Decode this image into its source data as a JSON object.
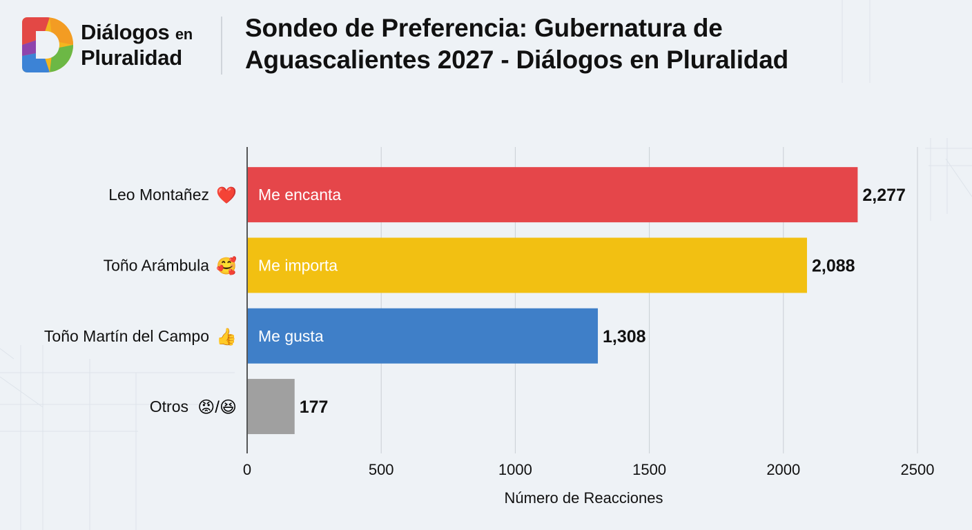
{
  "brand": {
    "name_line1": "Diálogos",
    "name_line1_small": "en",
    "name_line2": "Pluralidad",
    "logo_icon": "rainbow-d-logo"
  },
  "header": {
    "title_line1": "Sondeo de Preferencia: Gubernatura de",
    "title_line2": "Aguascalientes 2027 - Diálogos en Pluralidad"
  },
  "colors": {
    "background": "#eef2f6",
    "me_encanta": "#e5464a",
    "me_importa": "#f2c012",
    "me_gusta": "#3f7fc8",
    "otros": "#a0a0a0"
  },
  "chart_data": {
    "type": "bar",
    "orientation": "horizontal",
    "title": "Sondeo de Preferencia: Gubernatura de Aguascalientes 2027 - Diálogos en Pluralidad",
    "xlabel": "Número de Reacciones",
    "ylabel": "",
    "xlim": [
      0,
      2500
    ],
    "xticks": [
      0,
      500,
      1000,
      1500,
      2000,
      2500
    ],
    "grid": "vertical",
    "legend": "none",
    "categories": [
      {
        "name": "Leo Montañez",
        "emoji": "❤️",
        "emoji_name": "red-heart-icon"
      },
      {
        "name": "Toño Arámbula",
        "emoji": "🥰",
        "emoji_name": "smiling-face-with-hearts-icon"
      },
      {
        "name": "Toño Martín del Campo",
        "emoji": "👍",
        "emoji_name": "thumbs-up-icon"
      },
      {
        "name": "Otros",
        "emoji": "😡/😆",
        "emoji_name": "angry-and-laughing-face-icons"
      }
    ],
    "values": [
      2277,
      2088,
      1308,
      177
    ],
    "value_labels": [
      "2,277",
      "2,088",
      "1,308",
      "177"
    ],
    "bar_labels": [
      "Me encanta",
      "Me importa",
      "Me gusta",
      ""
    ],
    "bar_colors": [
      "#e5464a",
      "#f2c012",
      "#3f7fc8",
      "#a0a0a0"
    ]
  }
}
